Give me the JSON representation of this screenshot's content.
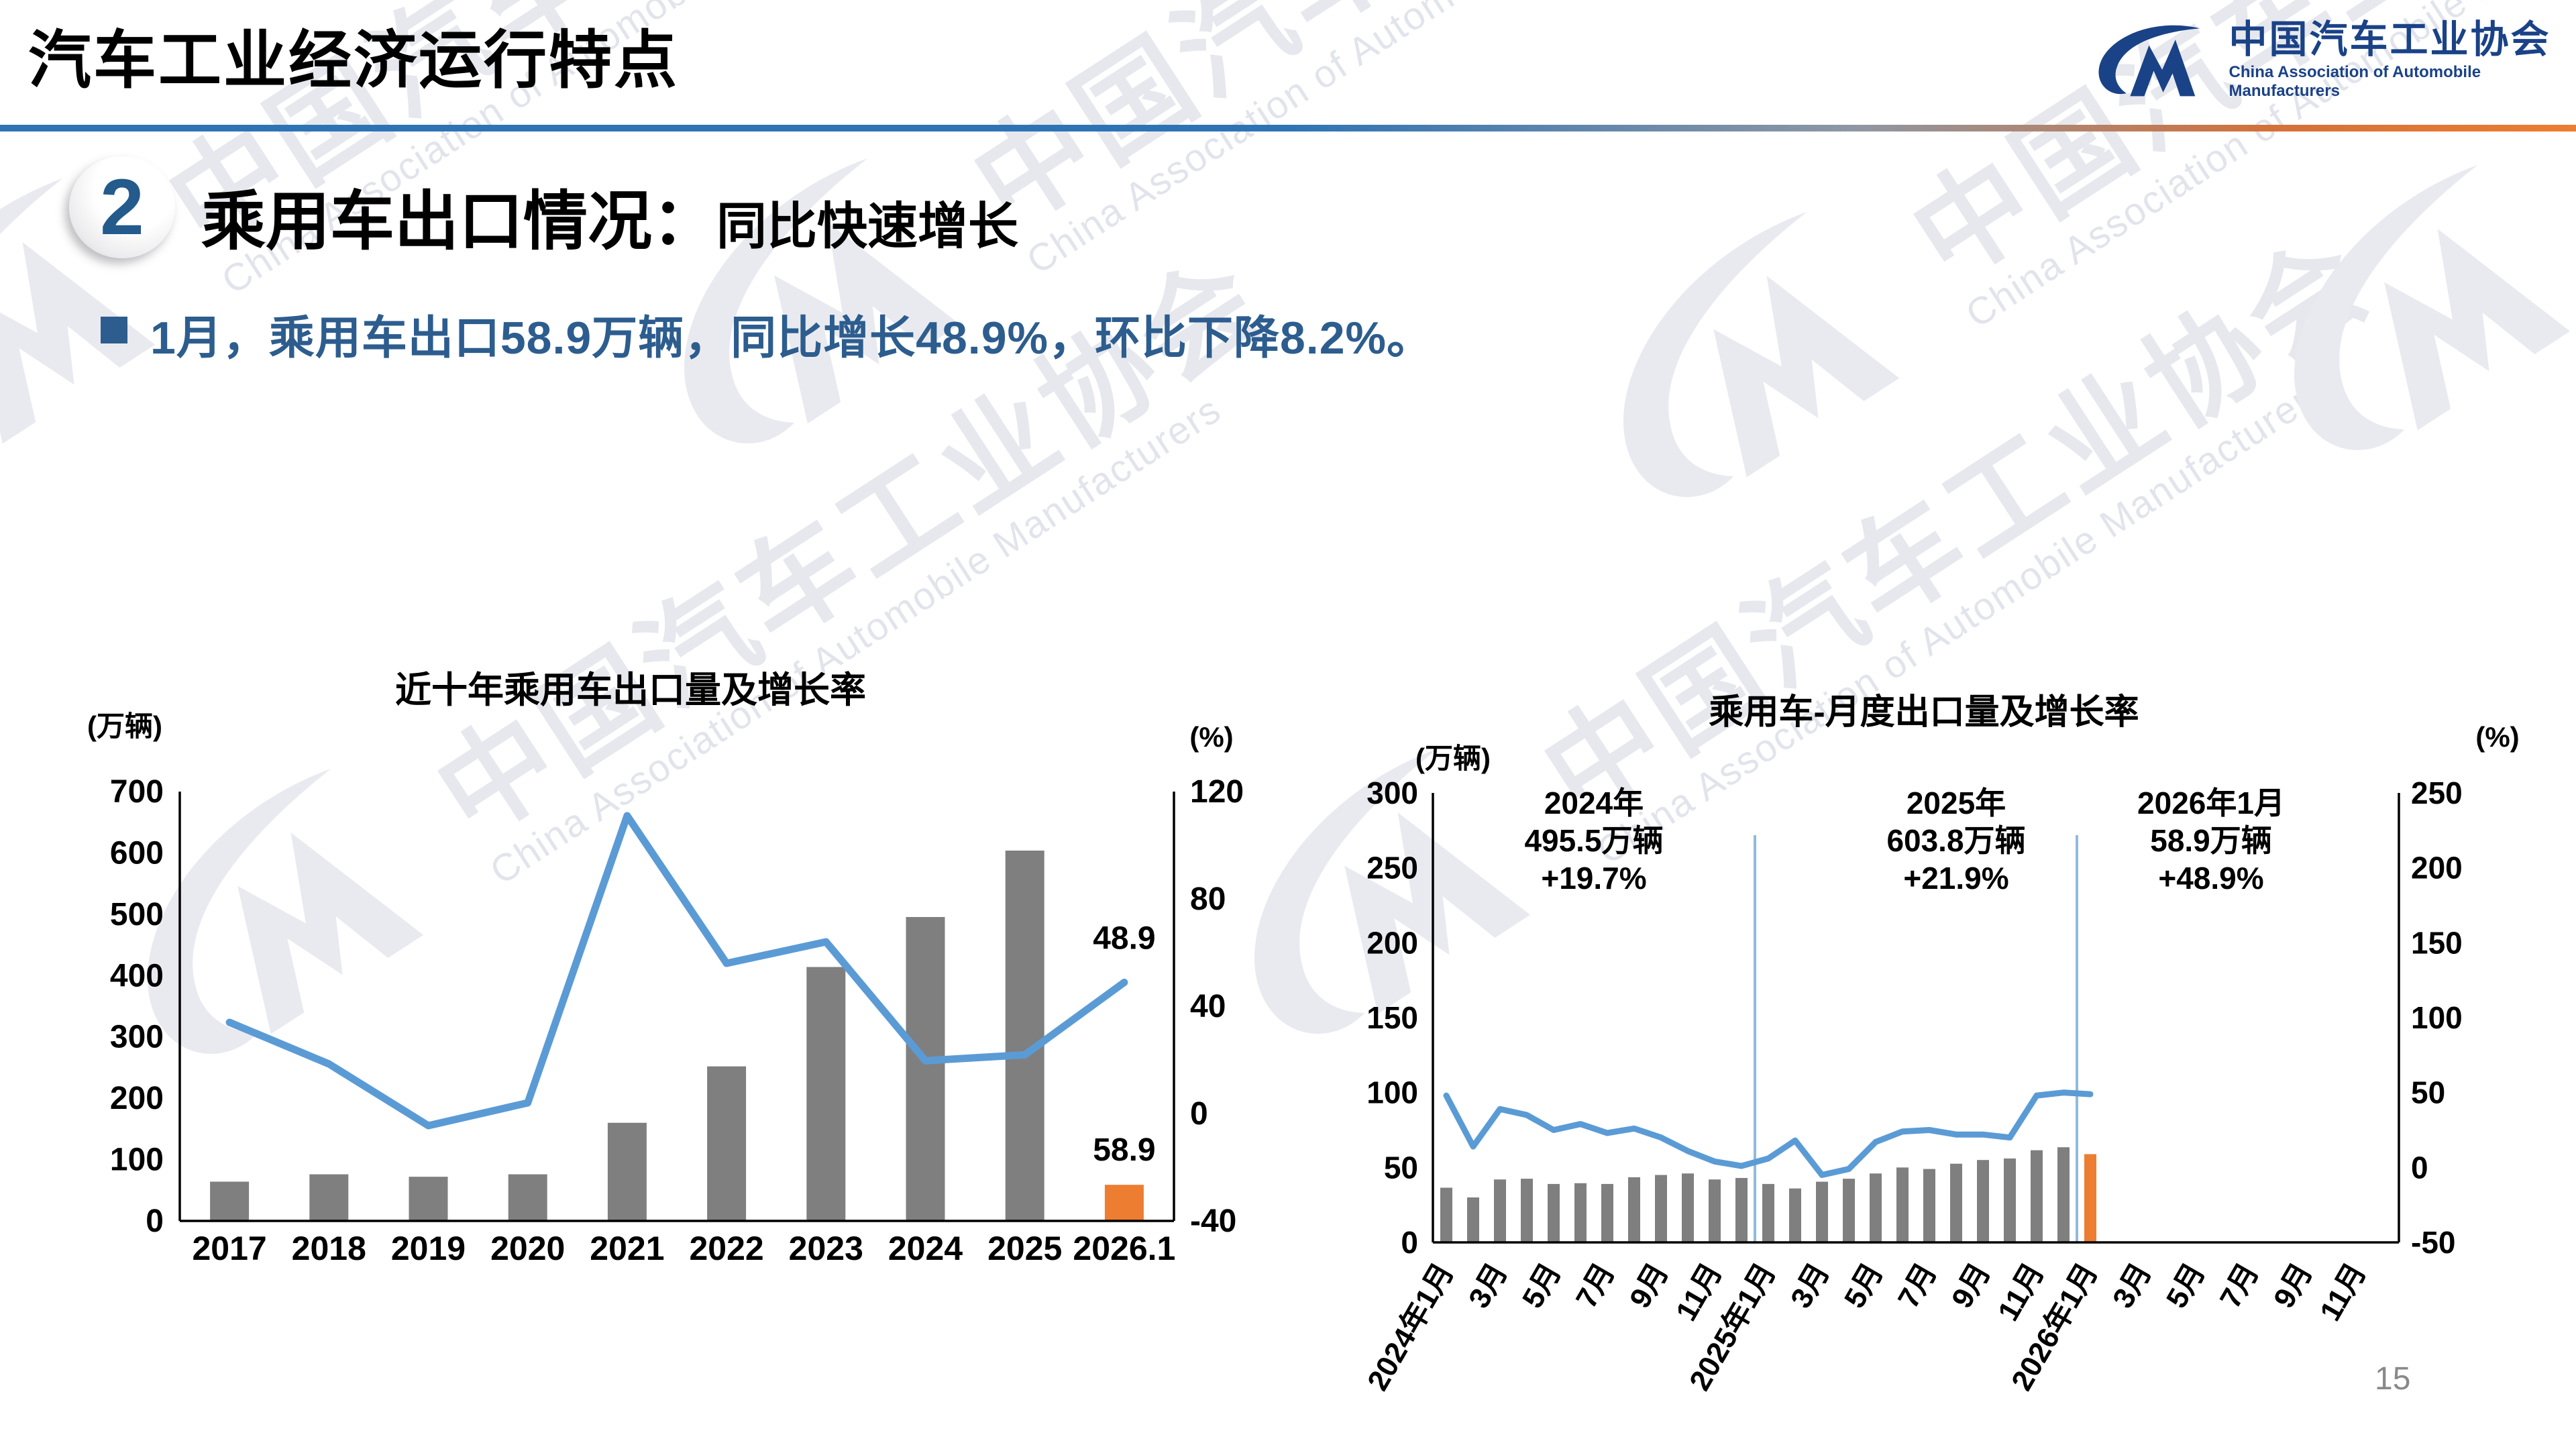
{
  "slide": {
    "title": "汽车工业经济运行特点",
    "page_number": "15",
    "section": {
      "number": "2",
      "title_main": "乘用车出口情况：",
      "title_sub": "同比快速增长"
    },
    "bullet": "1月，乘用车出口58.9万辆，同比增长48.9%，环比下降8.2%。"
  },
  "logo": {
    "name_cn": "中国汽车工业协会",
    "name_en": "China Association of Automobile Manufacturers",
    "color": "#1A4287"
  },
  "watermark": {
    "text_cn": "中国汽车工业协会",
    "text_en": "China Association of Automobile Manufacturers"
  },
  "colors": {
    "line_blue": "#5B9BD5",
    "bar_gray": "#7F7F7F",
    "bar_orange": "#ED7D31",
    "separator_blue": "#8FBADC",
    "axis_black": "#000000",
    "rule_blue": "#2E74B5",
    "bullet_blue": "#2D5D8E"
  },
  "chart_data": [
    {
      "id": "chart-left",
      "type": "bar+line",
      "title": "近十年乘用车出口量及增长率",
      "unit_left": "(万辆)",
      "unit_right": "(%)",
      "categories": [
        "2017",
        "2018",
        "2019",
        "2020",
        "2021",
        "2022",
        "2023",
        "2024",
        "2025",
        "2026.1"
      ],
      "series": [
        {
          "name": "出口量(万辆)",
          "type": "bar",
          "values": [
            64,
            76,
            72,
            76,
            160,
            252,
            414,
            495.5,
            603.8,
            58.9
          ]
        },
        {
          "name": "增长率(%)",
          "type": "line",
          "values": [
            34,
            18.5,
            -4.5,
            4,
            111,
            56,
            64,
            19.7,
            21.9,
            48.9
          ]
        }
      ],
      "bar_highlight_index": 9,
      "ylim_left": [
        0,
        700
      ],
      "yticks_left": [
        "0",
        "100",
        "200",
        "300",
        "400",
        "500",
        "600",
        "700"
      ],
      "ylim_right": [
        -40,
        120
      ],
      "yticks_right": [
        "-40",
        "0",
        "40",
        "80",
        "120"
      ],
      "point_label": "48.9",
      "bar_label": "58.9",
      "legend_position": "none",
      "grid": false
    },
    {
      "id": "chart-right",
      "type": "bar+line",
      "title": "乘用车-月度出口量及增长率",
      "unit_left": "(万辆)",
      "unit_right": "(%)",
      "slots": 36,
      "tick_every": 2,
      "tick_labels": [
        "2024年1月",
        "3月",
        "5月",
        "7月",
        "9月",
        "11月",
        "2025年1月",
        "3月",
        "5月",
        "7月",
        "9月",
        "11月",
        "2026年1月",
        "3月",
        "5月",
        "7月",
        "9月",
        "11月"
      ],
      "series": [
        {
          "name": "出口量(万辆)",
          "type": "bar",
          "values": [
            36.5,
            30,
            42,
            42.5,
            39,
            39.5,
            39,
            43.5,
            45,
            46,
            42,
            43,
            39,
            36,
            40.5,
            42.5,
            46,
            50,
            49,
            52.5,
            55,
            56,
            61.5,
            63.5,
            58.9
          ]
        },
        {
          "name": "增长率(%)",
          "type": "line",
          "values": [
            48,
            14,
            39,
            35,
            25,
            29,
            23,
            26,
            20,
            11,
            4,
            1,
            6,
            18,
            -5,
            -1,
            17,
            24,
            25,
            22,
            22,
            20,
            48,
            50,
            48.9
          ]
        }
      ],
      "bar_highlight_index": 24,
      "ylim_left": [
        0,
        300
      ],
      "yticks_left": [
        "0",
        "50",
        "100",
        "150",
        "200",
        "250",
        "300"
      ],
      "ylim_right": [
        -50,
        250
      ],
      "yticks_right": [
        "-50",
        "0",
        "50",
        "100",
        "150",
        "200",
        "250"
      ],
      "separators_at": [
        12,
        24
      ],
      "annotations": [
        {
          "lines": [
            "2024年",
            "495.5万辆",
            "+19.7%"
          ],
          "slot": 6
        },
        {
          "lines": [
            "2025年",
            "603.8万辆",
            "+21.9%"
          ],
          "slot": 19.5
        },
        {
          "lines": [
            "2026年1月",
            "58.9万辆",
            "+48.9%"
          ],
          "slot": 29
        }
      ],
      "legend_position": "none",
      "grid": false
    }
  ]
}
